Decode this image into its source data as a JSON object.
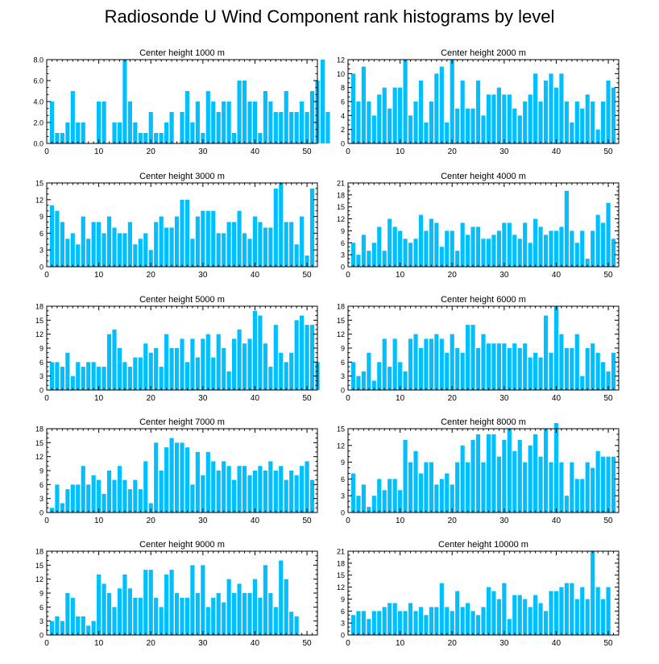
{
  "title": "Radiosonde U Wind Component rank histograms by level",
  "colors": {
    "bar": "#00bfff",
    "axis": "#000000",
    "background": "#ffffff"
  },
  "chart_data": [
    {
      "type": "bar",
      "title": "Center height 1000 m",
      "xlim": [
        0,
        52
      ],
      "ylim": [
        0,
        8
      ],
      "xticks": [
        0,
        10,
        20,
        30,
        40,
        50
      ],
      "yticks": [
        0,
        2,
        4,
        6,
        8
      ],
      "ytick_labels": [
        "0.0",
        "2.0",
        "4.0",
        "6.0",
        "8.0"
      ],
      "values": [
        4,
        1,
        1,
        2,
        5,
        2,
        2,
        0,
        0,
        4,
        4,
        0,
        2,
        2,
        8,
        4,
        2,
        1,
        1,
        3,
        1,
        1,
        2,
        3,
        0,
        3,
        5,
        2,
        4,
        1,
        5,
        4,
        3,
        4,
        4,
        1,
        6,
        6,
        4,
        4,
        1,
        5,
        4,
        3,
        3,
        5,
        3,
        3,
        4,
        3,
        5,
        6,
        8,
        3
      ]
    },
    {
      "type": "bar",
      "title": "Center height 2000 m",
      "xlim": [
        0,
        52
      ],
      "ylim": [
        0,
        12
      ],
      "xticks": [
        0,
        10,
        20,
        30,
        40,
        50
      ],
      "yticks": [
        0,
        2,
        4,
        6,
        8,
        10,
        12
      ],
      "ytick_labels": [
        "0",
        "2",
        "4",
        "6",
        "8",
        "10",
        "12"
      ],
      "values": [
        10,
        6,
        11,
        6,
        4,
        7,
        8,
        5,
        8,
        8,
        12,
        4,
        6,
        9,
        3,
        6,
        10,
        11,
        3,
        12,
        5,
        9,
        5,
        5,
        9,
        4,
        7,
        7,
        8,
        7,
        7,
        5,
        4,
        6,
        7,
        10,
        6,
        9,
        10,
        8,
        10,
        6,
        3,
        6,
        5,
        7,
        6,
        2,
        6,
        9,
        8
      ]
    },
    {
      "type": "bar",
      "title": "Center height 3000 m",
      "xlim": [
        0,
        52
      ],
      "ylim": [
        0,
        15
      ],
      "xticks": [
        0,
        10,
        20,
        30,
        40,
        50
      ],
      "yticks": [
        0,
        3,
        6,
        9,
        12,
        15
      ],
      "ytick_labels": [
        "0",
        "3",
        "6",
        "9",
        "12",
        "15"
      ],
      "values": [
        11,
        10,
        8,
        5,
        6,
        4,
        9,
        5,
        8,
        8,
        6,
        9,
        7,
        6,
        6,
        8,
        4,
        5,
        6,
        3,
        8,
        9,
        7,
        7,
        9,
        12,
        12,
        5,
        9,
        10,
        10,
        10,
        6,
        6,
        8,
        8,
        10,
        6,
        5,
        9,
        8,
        7,
        7,
        14,
        15,
        8,
        8,
        4,
        9,
        2,
        14
      ]
    },
    {
      "type": "bar",
      "title": "Center height 4000 m",
      "xlim": [
        0,
        52
      ],
      "ylim": [
        0,
        21
      ],
      "xticks": [
        0,
        10,
        20,
        30,
        40,
        50
      ],
      "yticks": [
        0,
        3,
        6,
        9,
        12,
        15,
        18,
        21
      ],
      "ytick_labels": [
        "0",
        "3",
        "6",
        "9",
        "12",
        "15",
        "18",
        "21"
      ],
      "values": [
        6,
        3,
        8,
        4,
        6,
        10,
        4,
        12,
        10,
        9,
        7,
        6,
        7,
        13,
        9,
        12,
        11,
        5,
        9,
        9,
        4,
        11,
        8,
        10,
        10,
        7,
        7,
        8,
        9,
        11,
        11,
        8,
        7,
        11,
        6,
        12,
        10,
        8,
        9,
        9,
        10,
        19,
        9,
        6,
        9,
        2,
        9,
        13,
        11,
        16,
        7
      ]
    },
    {
      "type": "bar",
      "title": "Center height 5000 m",
      "xlim": [
        0,
        52
      ],
      "ylim": [
        0,
        18
      ],
      "xticks": [
        0,
        10,
        20,
        30,
        40,
        50
      ],
      "yticks": [
        0,
        3,
        6,
        9,
        12,
        15,
        18
      ],
      "ytick_labels": [
        "0",
        "3",
        "6",
        "9",
        "12",
        "15",
        "18"
      ],
      "values": [
        6,
        6,
        5,
        8,
        3,
        6,
        5,
        6,
        6,
        5,
        5,
        12,
        13,
        9,
        6,
        5,
        7,
        7,
        10,
        8,
        9,
        5,
        12,
        9,
        9,
        11,
        6,
        11,
        7,
        11,
        12,
        7,
        12,
        9,
        4,
        11,
        13,
        10,
        11,
        17,
        16,
        10,
        5,
        14,
        8,
        6,
        8,
        15,
        16,
        14,
        14,
        6
      ]
    },
    {
      "type": "bar",
      "title": "Center height 6000 m",
      "xlim": [
        0,
        52
      ],
      "ylim": [
        0,
        18
      ],
      "xticks": [
        0,
        10,
        20,
        30,
        40,
        50
      ],
      "yticks": [
        0,
        3,
        6,
        9,
        12,
        15,
        18
      ],
      "ytick_labels": [
        "0",
        "3",
        "6",
        "9",
        "12",
        "15",
        "18"
      ],
      "values": [
        6,
        3,
        4,
        8,
        2,
        6,
        11,
        5,
        11,
        6,
        4,
        11,
        12,
        9,
        11,
        11,
        12,
        11,
        8,
        12,
        9,
        8,
        14,
        14,
        9,
        12,
        10,
        10,
        10,
        10,
        9,
        10,
        9,
        10,
        7,
        8,
        7,
        16,
        8,
        18,
        12,
        9,
        9,
        12,
        3,
        9,
        10,
        8,
        6,
        4,
        8
      ]
    },
    {
      "type": "bar",
      "title": "Center height 7000 m",
      "xlim": [
        0,
        52
      ],
      "ylim": [
        0,
        18
      ],
      "xticks": [
        0,
        10,
        20,
        30,
        40,
        50
      ],
      "yticks": [
        0,
        3,
        6,
        9,
        12,
        15,
        18
      ],
      "ytick_labels": [
        "0",
        "3",
        "6",
        "9",
        "12",
        "15",
        "18"
      ],
      "values": [
        1,
        6,
        2,
        5,
        6,
        6,
        10,
        6,
        8,
        7,
        4,
        9,
        7,
        10,
        7,
        5,
        7,
        5,
        11,
        2,
        15,
        9,
        14,
        16,
        15,
        15,
        14,
        6,
        13,
        8,
        13,
        11,
        9,
        11,
        10,
        7,
        10,
        10,
        8,
        9,
        10,
        9,
        11,
        9,
        10,
        7,
        9,
        8,
        10,
        11,
        7
      ]
    },
    {
      "type": "bar",
      "title": "Center height 8000 m",
      "xlim": [
        0,
        52
      ],
      "ylim": [
        0,
        15
      ],
      "xticks": [
        0,
        10,
        20,
        30,
        40,
        50
      ],
      "yticks": [
        0,
        3,
        6,
        9,
        12,
        15
      ],
      "ytick_labels": [
        "0",
        "3",
        "6",
        "9",
        "12",
        "15"
      ],
      "values": [
        7,
        3,
        5,
        1,
        3,
        6,
        4,
        6,
        6,
        4,
        13,
        9,
        11,
        7,
        9,
        9,
        5,
        6,
        7,
        5,
        9,
        12,
        9,
        13,
        14,
        9,
        14,
        14,
        10,
        13,
        15,
        11,
        13,
        9,
        12,
        14,
        10,
        15,
        9,
        16,
        9,
        3,
        9,
        6,
        6,
        9,
        8,
        11,
        10,
        10,
        10
      ]
    },
    {
      "type": "bar",
      "title": "Center height 9000 m",
      "xlim": [
        0,
        52
      ],
      "ylim": [
        0,
        18
      ],
      "xticks": [
        0,
        10,
        20,
        30,
        40,
        50
      ],
      "yticks": [
        0,
        3,
        6,
        9,
        12,
        15,
        18
      ],
      "ytick_labels": [
        "0",
        "3",
        "6",
        "9",
        "12",
        "15",
        "18"
      ],
      "values": [
        3,
        4,
        3,
        9,
        8,
        4,
        4,
        2,
        3,
        13,
        11,
        9,
        6,
        10,
        13,
        10,
        8,
        8,
        14,
        14,
        8,
        6,
        13,
        14,
        9,
        8,
        8,
        15,
        9,
        15,
        6,
        8,
        9,
        7,
        12,
        9,
        11,
        9,
        9,
        12,
        8,
        15,
        9,
        6,
        16,
        12,
        5,
        4
      ]
    },
    {
      "type": "bar",
      "title": "Center height 10000 m",
      "xlim": [
        0,
        52
      ],
      "ylim": [
        0,
        21
      ],
      "xticks": [
        0,
        10,
        20,
        30,
        40,
        50
      ],
      "yticks": [
        0,
        3,
        6,
        9,
        12,
        15,
        18,
        21
      ],
      "ytick_labels": [
        "0",
        "3",
        "6",
        "9",
        "12",
        "15",
        "18",
        "21"
      ],
      "values": [
        5,
        6,
        6,
        4,
        6,
        6,
        7,
        8,
        8,
        6,
        6,
        8,
        6,
        7,
        5,
        7,
        7,
        13,
        7,
        6,
        11,
        7,
        8,
        6,
        5,
        7,
        12,
        11,
        9,
        13,
        4,
        10,
        10,
        9,
        7,
        10,
        8,
        6,
        11,
        11,
        12,
        13,
        13,
        9,
        12,
        9,
        21,
        12,
        9,
        12
      ]
    }
  ]
}
